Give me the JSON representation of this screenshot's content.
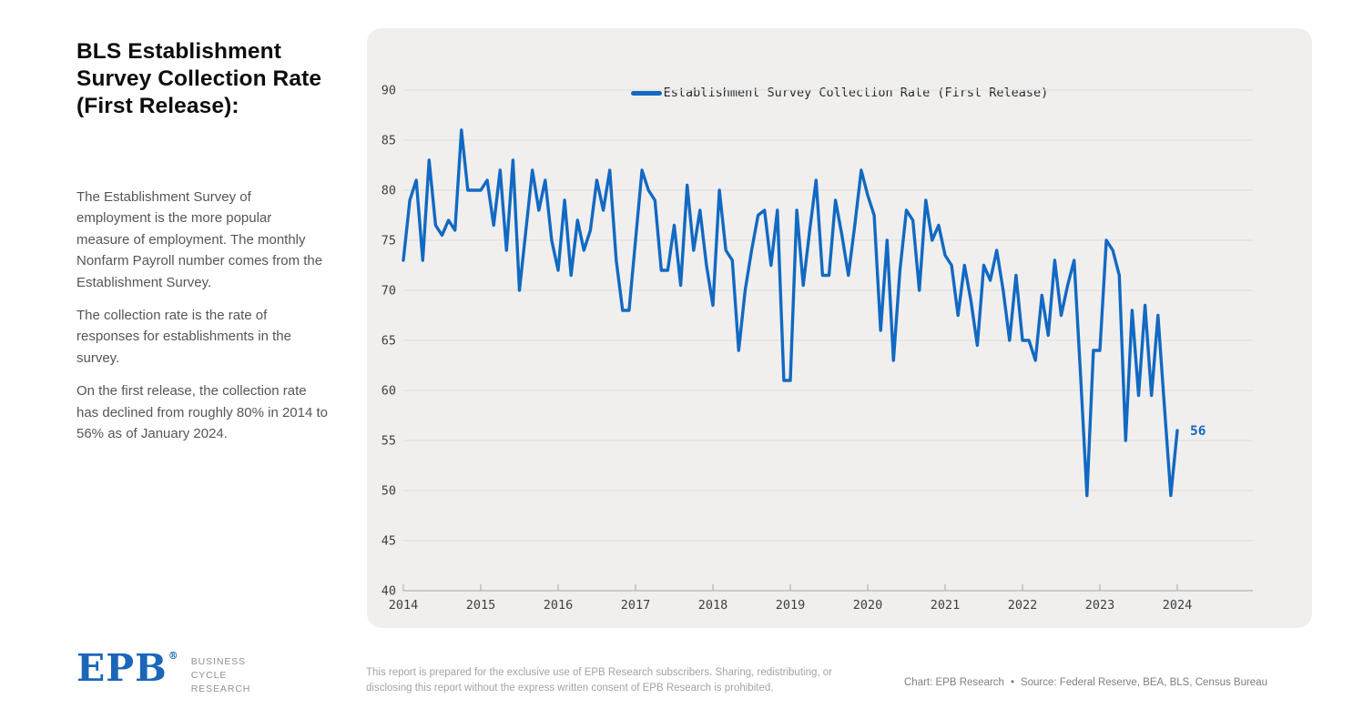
{
  "sidebar": {
    "title": "BLS Establishment Survey Collection Rate (First Release):",
    "paragraphs": [
      "The Establishment Survey of employment is the more popular measure of employment. The monthly Nonfarm Payroll number comes from the Establishment Survey.",
      "The collection rate is the rate of responses for establishments in the survey.",
      "On the first release, the collection rate has declined from roughly 80% in 2014 to 56% as of January 2024."
    ]
  },
  "chart_data": {
    "type": "line",
    "series_name": "Establishment Survey Collection Rate (First Release)",
    "frequency": "monthly",
    "start": "2014-01",
    "end": "2024-01",
    "values": [
      73,
      79,
      81,
      73,
      83,
      76.5,
      75.5,
      77,
      76,
      86,
      80,
      80,
      80,
      81,
      76.5,
      82,
      74,
      83,
      70,
      76,
      82,
      78,
      81,
      75,
      72,
      79,
      71.5,
      77,
      74,
      76,
      81,
      78,
      82,
      73,
      68,
      68,
      75,
      82,
      80,
      79,
      72,
      72,
      76.5,
      70.5,
      80.5,
      74,
      78,
      72.5,
      68.5,
      80,
      74,
      73,
      64,
      70,
      74,
      77.5,
      78,
      72.5,
      78,
      61,
      61,
      78,
      70.5,
      76,
      81,
      71.5,
      71.5,
      79,
      75.5,
      71.5,
      76.5,
      82,
      79.5,
      77.5,
      66,
      75,
      63,
      72,
      78,
      77,
      70,
      79,
      75,
      76.5,
      73.5,
      72.5,
      67.5,
      72.5,
      69,
      64.5,
      72.5,
      71,
      74,
      70,
      65,
      71.5,
      65,
      65,
      63,
      69.5,
      65.5,
      73,
      67.5,
      70.5,
      73,
      61.5,
      49.5,
      64,
      64,
      75,
      74,
      71.5,
      55,
      68,
      59.5,
      68.5,
      59.5,
      67.5,
      58.5,
      49.5,
      56
    ],
    "ylim": [
      40,
      90
    ],
    "yticks": [
      90,
      85,
      80,
      75,
      70,
      65,
      60,
      55,
      50,
      45,
      40
    ],
    "xticks": [
      "2014",
      "2015",
      "2016",
      "2017",
      "2018",
      "2019",
      "2020",
      "2021",
      "2022",
      "2023",
      "2024"
    ],
    "end_label": "56",
    "grid": true,
    "legend_position": "top",
    "line_color": "#1269c2",
    "grid_color": "#dcdcdb",
    "axis_color": "#b3b3b2",
    "tick_label_color": "#3f3f40"
  },
  "footer": {
    "logo_text": "EPB",
    "logo_reg": "®",
    "logo_sub_lines": [
      "BUSINESS",
      "CYCLE",
      "RESEARCH"
    ],
    "disclaimer": "This report is prepared for the exclusive use of EPB Research subscribers. Sharing, redistributing, or disclosing this report without the express written consent of EPB Research is prohibited.",
    "credit": "Chart: EPB Research",
    "bullet": "•",
    "source": "Source: Federal Reserve, BEA, BLS, Census Bureau"
  }
}
